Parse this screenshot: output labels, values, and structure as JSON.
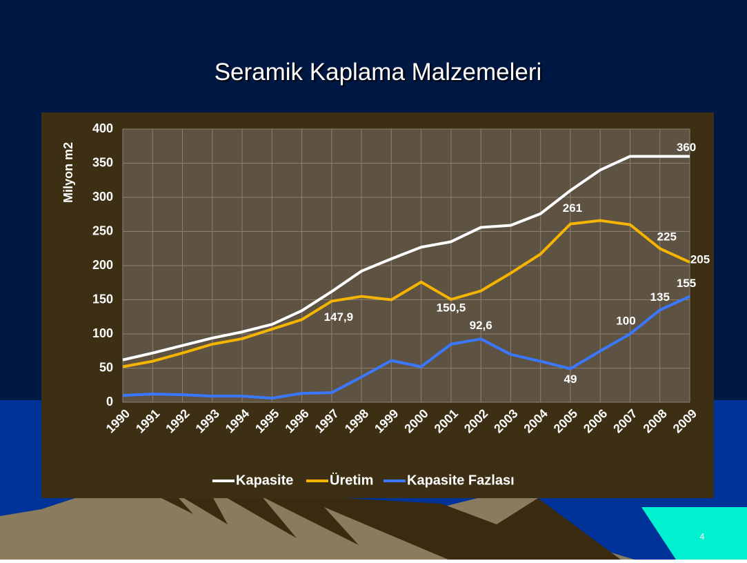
{
  "slide_number": "4",
  "chart_data": {
    "type": "line",
    "title": "Seramik Kaplama Malzemeleri",
    "y_label": "Milyon m2",
    "categories": [
      "1990",
      "1991",
      "1992",
      "1993",
      "1994",
      "1995",
      "1996",
      "1997",
      "1998",
      "1999",
      "2000",
      "2001",
      "2002",
      "2003",
      "2004",
      "2005",
      "2006",
      "2007",
      "2008",
      "2009"
    ],
    "ylim": [
      0,
      400
    ],
    "yticks": [
      0,
      50,
      100,
      150,
      200,
      250,
      300,
      350,
      400
    ],
    "grid": true,
    "legend": "bottom",
    "series": [
      {
        "name": "Kapasite",
        "color": "#ffffff",
        "values": [
          62,
          72,
          83,
          94,
          103,
          114,
          134,
          162,
          192,
          210,
          227,
          235,
          256,
          259,
          276,
          310,
          340,
          360,
          360,
          360
        ],
        "value_labels": [
          null,
          null,
          null,
          null,
          null,
          null,
          null,
          null,
          null,
          null,
          null,
          null,
          null,
          null,
          null,
          null,
          null,
          null,
          null,
          "360"
        ]
      },
      {
        "name": "Üretim",
        "color": "#f5b400",
        "values": [
          52,
          60,
          72,
          85,
          93,
          107,
          121,
          147.9,
          155,
          150,
          176,
          150.5,
          163,
          189,
          217,
          261,
          266,
          260,
          225,
          205
        ],
        "value_labels": [
          null,
          null,
          null,
          null,
          null,
          null,
          null,
          "147,9",
          null,
          null,
          null,
          "150,5",
          null,
          null,
          null,
          "261",
          null,
          null,
          "225",
          "205"
        ]
      },
      {
        "name": "Kapasite Fazlası",
        "color": "#3a78ff",
        "values": [
          10,
          12,
          11,
          9,
          9,
          6,
          13,
          14,
          37,
          61,
          52,
          85,
          92.6,
          70,
          60,
          49,
          75,
          100,
          135,
          155
        ],
        "value_labels": [
          null,
          null,
          null,
          null,
          null,
          null,
          null,
          null,
          null,
          null,
          null,
          null,
          "92,6",
          null,
          null,
          "49",
          null,
          "100",
          "135",
          "155"
        ]
      }
    ]
  }
}
